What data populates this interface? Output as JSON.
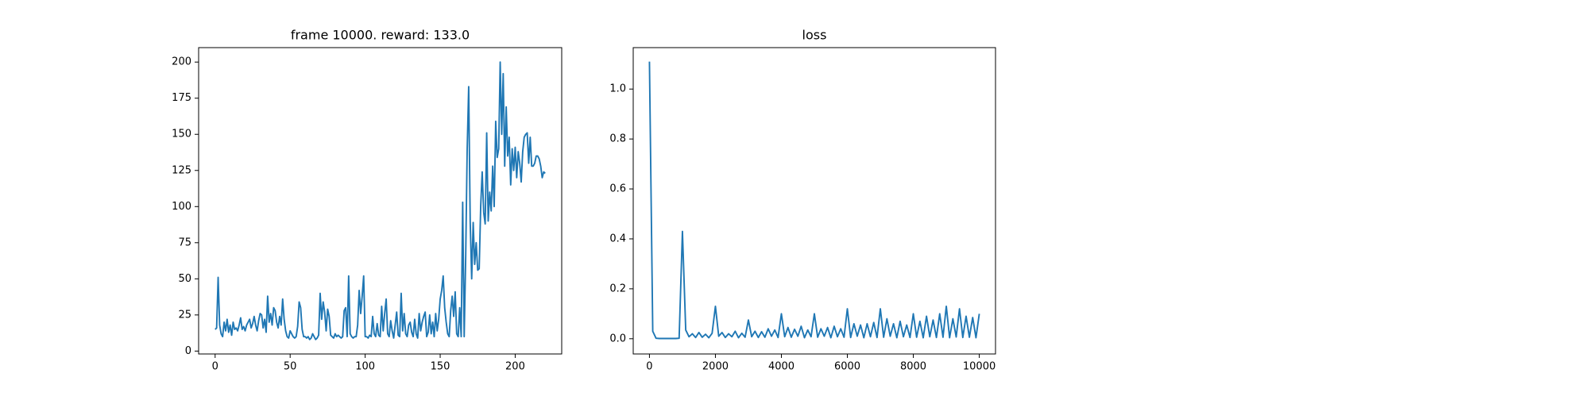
{
  "chart_data": [
    {
      "type": "line",
      "title": "frame 10000. reward: 133.0",
      "color": "#1f77b4",
      "xlim": [
        -11,
        231
      ],
      "ylim": [
        -2,
        210
      ],
      "xticks": [
        0,
        50,
        100,
        150,
        200
      ],
      "yticks": [
        0,
        25,
        50,
        75,
        100,
        125,
        150,
        175,
        200
      ],
      "values": [
        15,
        16,
        51,
        18,
        12,
        10,
        20,
        14,
        22,
        13,
        18,
        11,
        20,
        15,
        16,
        14,
        18,
        23,
        15,
        17,
        14,
        18,
        20,
        22,
        16,
        19,
        24,
        18,
        14,
        21,
        26,
        25,
        16,
        22,
        13,
        38,
        20,
        26,
        18,
        30,
        28,
        20,
        16,
        24,
        18,
        36,
        22,
        14,
        10,
        9,
        14,
        12,
        10,
        9,
        10,
        17,
        34,
        30,
        15,
        10,
        10,
        9,
        10,
        8,
        9,
        12,
        10,
        8,
        9,
        11,
        40,
        22,
        34,
        27,
        14,
        29,
        24,
        11,
        10,
        9,
        12,
        10,
        11,
        10,
        9,
        10,
        28,
        30,
        10,
        52,
        12,
        10,
        9,
        10,
        10,
        18,
        42,
        26,
        38,
        52,
        10,
        10,
        9,
        11,
        10,
        24,
        12,
        10,
        19,
        11,
        10,
        31,
        14,
        26,
        36,
        12,
        10,
        21,
        14,
        9,
        18,
        27,
        11,
        10,
        40,
        14,
        26,
        12,
        10,
        18,
        20,
        13,
        10,
        22,
        12,
        9,
        26,
        14,
        20,
        24,
        27,
        10,
        13,
        25,
        12,
        20,
        10,
        26,
        14,
        22,
        36,
        42,
        52,
        30,
        20,
        12,
        10,
        28,
        38,
        24,
        41,
        12,
        10,
        30,
        10,
        103,
        10,
        65,
        140,
        183,
        90,
        50,
        89,
        60,
        75,
        56,
        57,
        100,
        124,
        96,
        88,
        151,
        90,
        110,
        97,
        128,
        100,
        159,
        134,
        140,
        200,
        150,
        192,
        128,
        169,
        135,
        148,
        115,
        140,
        125,
        141,
        120,
        138,
        130,
        117,
        138,
        148,
        150,
        151,
        130,
        148,
        128,
        128,
        130,
        135,
        135,
        133,
        128,
        120,
        124,
        123
      ]
    },
    {
      "type": "line",
      "title": "loss",
      "color": "#1f77b4",
      "xlim": [
        -492,
        10492
      ],
      "ylim": [
        -0.061,
        1.166
      ],
      "xticks": [
        0,
        2000,
        4000,
        6000,
        8000,
        10000
      ],
      "yticks": [
        {
          "value": 0,
          "label": "0.0"
        },
        0.2,
        0.4,
        0.6,
        0.8,
        {
          "value": 1,
          "label": "1.0"
        }
      ],
      "x": [
        0,
        100,
        200,
        300,
        400,
        500,
        600,
        700,
        800,
        900,
        1000,
        1100,
        1200,
        1300,
        1400,
        1500,
        1600,
        1700,
        1800,
        1900,
        2000,
        2100,
        2200,
        2300,
        2400,
        2500,
        2600,
        2700,
        2800,
        2900,
        3000,
        3100,
        3200,
        3300,
        3400,
        3500,
        3600,
        3700,
        3800,
        3900,
        4000,
        4100,
        4200,
        4300,
        4400,
        4500,
        4600,
        4700,
        4800,
        4900,
        5000,
        5100,
        5200,
        5300,
        5400,
        5500,
        5600,
        5700,
        5800,
        5900,
        6000,
        6100,
        6200,
        6300,
        6400,
        6500,
        6600,
        6700,
        6800,
        6900,
        7000,
        7100,
        7200,
        7300,
        7400,
        7500,
        7600,
        7700,
        7800,
        7900,
        8000,
        8100,
        8200,
        8300,
        8400,
        8500,
        8600,
        8700,
        8800,
        8900,
        9000,
        9100,
        9200,
        9300,
        9400,
        9500,
        9600,
        9700,
        9800,
        9900,
        10000
      ],
      "values": [
        1.11,
        0.03,
        0.002,
        0.001,
        0.001,
        0.001,
        0.001,
        0.001,
        0.001,
        0.002,
        0.43,
        0.035,
        0.008,
        0.02,
        0.005,
        0.025,
        0.006,
        0.018,
        0.004,
        0.022,
        0.13,
        0.01,
        0.025,
        0.005,
        0.02,
        0.008,
        0.03,
        0.004,
        0.022,
        0.006,
        0.075,
        0.008,
        0.03,
        0.005,
        0.028,
        0.006,
        0.04,
        0.01,
        0.035,
        0.005,
        0.1,
        0.008,
        0.045,
        0.006,
        0.038,
        0.01,
        0.05,
        0.004,
        0.035,
        0.008,
        0.1,
        0.006,
        0.04,
        0.01,
        0.045,
        0.004,
        0.05,
        0.008,
        0.04,
        0.006,
        0.12,
        0.005,
        0.06,
        0.01,
        0.055,
        0.004,
        0.06,
        0.008,
        0.065,
        0.005,
        0.12,
        0.006,
        0.08,
        0.01,
        0.06,
        0.004,
        0.07,
        0.008,
        0.055,
        0.005,
        0.1,
        0.006,
        0.07,
        0.004,
        0.09,
        0.008,
        0.075,
        0.005,
        0.1,
        0.006,
        0.13,
        0.004,
        0.08,
        0.007,
        0.12,
        0.005,
        0.09,
        0.006,
        0.085,
        0.004,
        0.1
      ]
    }
  ]
}
